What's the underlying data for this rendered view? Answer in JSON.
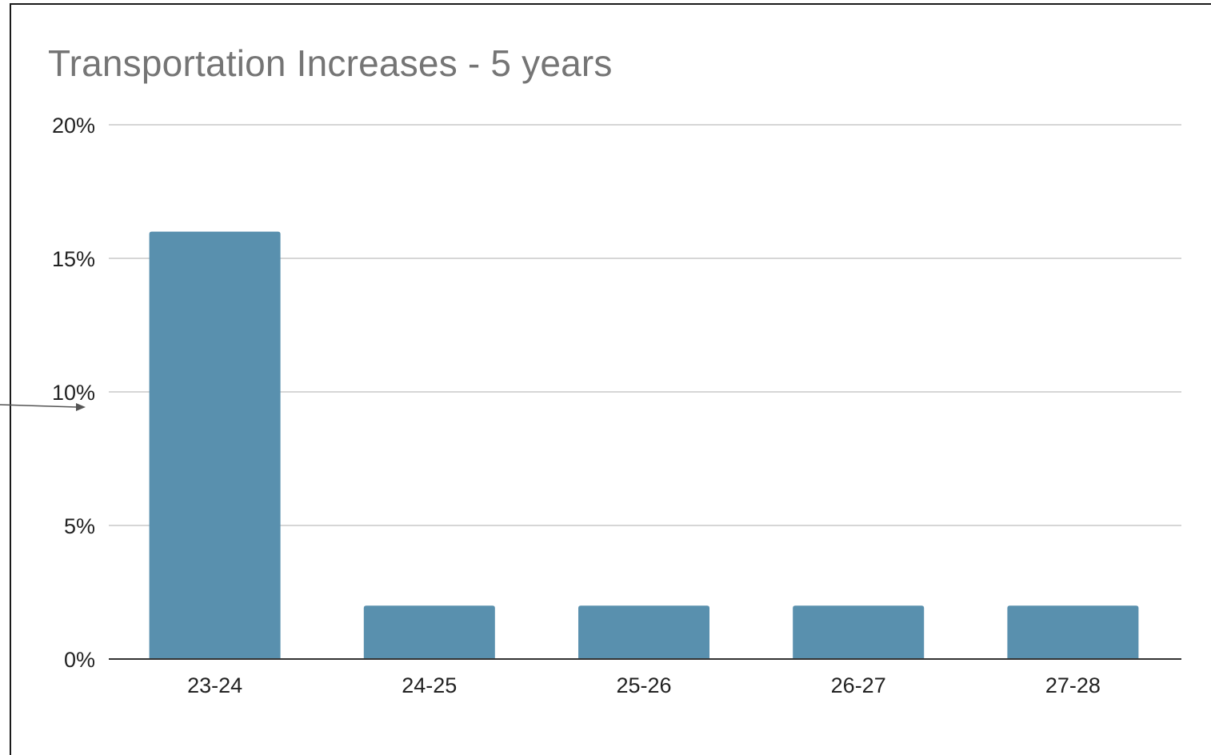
{
  "chart_data": {
    "type": "bar",
    "title": "Transportation Increases - 5 years",
    "categories": [
      "23-24",
      "24-25",
      "25-26",
      "26-27",
      "27-28"
    ],
    "values": [
      16,
      2,
      2,
      2,
      2
    ],
    "ylim": [
      0,
      20
    ],
    "yticks": [
      0,
      5,
      10,
      15,
      20
    ],
    "ytick_labels": [
      "0%",
      "5%",
      "10%",
      "15%",
      "20%"
    ],
    "xlabel": "",
    "ylabel": "",
    "grid": true,
    "legend": "none",
    "colors": {
      "bar": "#5990ae",
      "grid": "#d6d6d6",
      "axis": "#333333",
      "title": "#757575"
    }
  }
}
